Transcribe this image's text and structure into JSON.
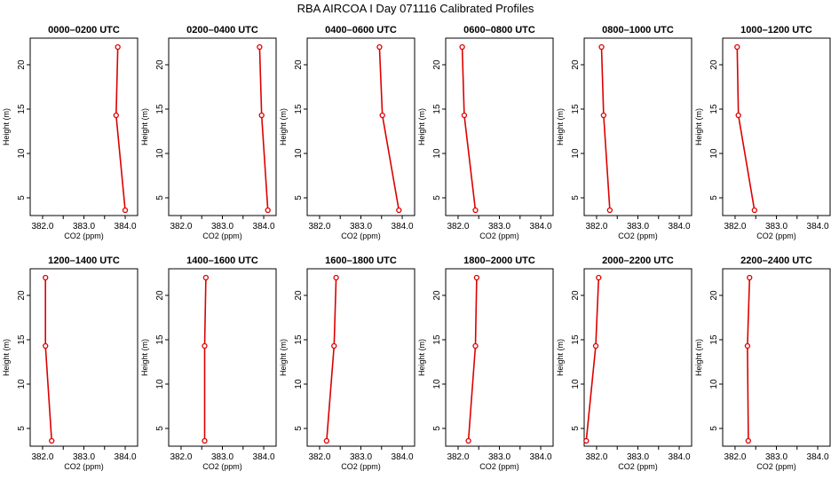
{
  "figure": {
    "title": "RBA AIRCOA I  Day 071116  Calibrated Profiles",
    "colors": {
      "series": "#dd0000",
      "axes": "#000000",
      "background": "#ffffff"
    }
  },
  "chart_data": [
    {
      "type": "line",
      "title": "0000–0200 UTC",
      "xlabel": "CO2 (ppm)",
      "ylabel": "Height (m)",
      "xlim": [
        381.7,
        384.3
      ],
      "ylim": [
        3,
        23
      ],
      "xticks": [
        "382.0",
        "383.0",
        "384.0"
      ],
      "yticks": [
        "5",
        "10",
        "15",
        "20"
      ],
      "grid": false,
      "series": [
        {
          "x": [
            383.82,
            383.78,
            384.0
          ],
          "y": [
            22,
            14.3,
            3.6
          ]
        }
      ]
    },
    {
      "type": "line",
      "title": "0200–0400 UTC",
      "xlabel": "CO2 (ppm)",
      "ylabel": "Height (m)",
      "xlim": [
        381.7,
        384.3
      ],
      "ylim": [
        3,
        23
      ],
      "xticks": [
        "382.0",
        "383.0",
        "384.0"
      ],
      "yticks": [
        "5",
        "10",
        "15",
        "20"
      ],
      "grid": false,
      "series": [
        {
          "x": [
            383.9,
            383.95,
            384.1
          ],
          "y": [
            22,
            14.3,
            3.6
          ]
        }
      ]
    },
    {
      "type": "line",
      "title": "0400–0600 UTC",
      "xlabel": "CO2 (ppm)",
      "ylabel": "Height (m)",
      "xlim": [
        381.7,
        384.3
      ],
      "ylim": [
        3,
        23
      ],
      "xticks": [
        "382.0",
        "383.0",
        "384.0"
      ],
      "yticks": [
        "5",
        "10",
        "15",
        "20"
      ],
      "grid": false,
      "series": [
        {
          "x": [
            383.45,
            383.52,
            383.92
          ],
          "y": [
            22,
            14.3,
            3.6
          ]
        }
      ]
    },
    {
      "type": "line",
      "title": "0600–0800 UTC",
      "xlabel": "CO2 (ppm)",
      "ylabel": "Height (m)",
      "xlim": [
        381.7,
        384.3
      ],
      "ylim": [
        3,
        23
      ],
      "xticks": [
        "382.0",
        "383.0",
        "384.0"
      ],
      "yticks": [
        "5",
        "10",
        "15",
        "20"
      ],
      "grid": false,
      "series": [
        {
          "x": [
            382.1,
            382.15,
            382.42
          ],
          "y": [
            22,
            14.3,
            3.6
          ]
        }
      ]
    },
    {
      "type": "line",
      "title": "0800–1000 UTC",
      "xlabel": "CO2 (ppm)",
      "ylabel": "Height (m)",
      "xlim": [
        381.7,
        384.3
      ],
      "ylim": [
        3,
        23
      ],
      "xticks": [
        "382.0",
        "383.0",
        "384.0"
      ],
      "yticks": [
        "5",
        "10",
        "15",
        "20"
      ],
      "grid": false,
      "series": [
        {
          "x": [
            382.12,
            382.17,
            382.32
          ],
          "y": [
            22,
            14.3,
            3.6
          ]
        }
      ]
    },
    {
      "type": "line",
      "title": "1000–1200 UTC",
      "xlabel": "CO2 (ppm)",
      "ylabel": "Height (m)",
      "xlim": [
        381.7,
        384.3
      ],
      "ylim": [
        3,
        23
      ],
      "xticks": [
        "382.0",
        "383.0",
        "384.0"
      ],
      "yticks": [
        "5",
        "10",
        "15",
        "20"
      ],
      "grid": false,
      "series": [
        {
          "x": [
            382.05,
            382.08,
            382.47
          ],
          "y": [
            22,
            14.3,
            3.6
          ]
        }
      ]
    },
    {
      "type": "line",
      "title": "1200–1400 UTC",
      "xlabel": "CO2 (ppm)",
      "ylabel": "Height (m)",
      "xlim": [
        381.7,
        384.3
      ],
      "ylim": [
        3,
        23
      ],
      "xticks": [
        "382.0",
        "383.0",
        "384.0"
      ],
      "yticks": [
        "5",
        "10",
        "15",
        "20"
      ],
      "grid": false,
      "series": [
        {
          "x": [
            382.07,
            382.07,
            382.22
          ],
          "y": [
            22,
            14.3,
            3.6
          ]
        }
      ]
    },
    {
      "type": "line",
      "title": "1400–1600 UTC",
      "xlabel": "CO2 (ppm)",
      "ylabel": "Height (m)",
      "xlim": [
        381.7,
        384.3
      ],
      "ylim": [
        3,
        23
      ],
      "xticks": [
        "382.0",
        "383.0",
        "384.0"
      ],
      "yticks": [
        "5",
        "10",
        "15",
        "20"
      ],
      "grid": false,
      "series": [
        {
          "x": [
            382.6,
            382.57,
            382.57
          ],
          "y": [
            22,
            14.3,
            3.6
          ]
        }
      ]
    },
    {
      "type": "line",
      "title": "1600–1800 UTC",
      "xlabel": "CO2 (ppm)",
      "ylabel": "Height (m)",
      "xlim": [
        381.7,
        384.3
      ],
      "ylim": [
        3,
        23
      ],
      "xticks": [
        "382.0",
        "383.0",
        "384.0"
      ],
      "yticks": [
        "5",
        "10",
        "15",
        "20"
      ],
      "grid": false,
      "series": [
        {
          "x": [
            382.4,
            382.35,
            382.17
          ],
          "y": [
            22,
            14.3,
            3.6
          ]
        }
      ]
    },
    {
      "type": "line",
      "title": "1800–2000 UTC",
      "xlabel": "CO2 (ppm)",
      "ylabel": "Height (m)",
      "xlim": [
        381.7,
        384.3
      ],
      "ylim": [
        3,
        23
      ],
      "xticks": [
        "382.0",
        "383.0",
        "384.0"
      ],
      "yticks": [
        "5",
        "10",
        "15",
        "20"
      ],
      "grid": false,
      "series": [
        {
          "x": [
            382.45,
            382.42,
            382.25
          ],
          "y": [
            22,
            14.3,
            3.6
          ]
        }
      ]
    },
    {
      "type": "line",
      "title": "2000–2200 UTC",
      "xlabel": "CO2 (ppm)",
      "ylabel": "Height (m)",
      "xlim": [
        381.7,
        384.3
      ],
      "ylim": [
        3,
        23
      ],
      "xticks": [
        "382.0",
        "383.0",
        "384.0"
      ],
      "yticks": [
        "5",
        "10",
        "15",
        "20"
      ],
      "grid": false,
      "series": [
        {
          "x": [
            382.05,
            381.98,
            381.75
          ],
          "y": [
            22,
            14.3,
            3.6
          ]
        }
      ]
    },
    {
      "type": "line",
      "title": "2200–2400 UTC",
      "xlabel": "CO2 (ppm)",
      "ylabel": "Height (m)",
      "xlim": [
        381.7,
        384.3
      ],
      "ylim": [
        3,
        23
      ],
      "xticks": [
        "382.0",
        "383.0",
        "384.0"
      ],
      "yticks": [
        "5",
        "10",
        "15",
        "20"
      ],
      "grid": false,
      "series": [
        {
          "x": [
            382.35,
            382.3,
            382.32
          ],
          "y": [
            22,
            14.3,
            3.6
          ]
        }
      ]
    }
  ]
}
